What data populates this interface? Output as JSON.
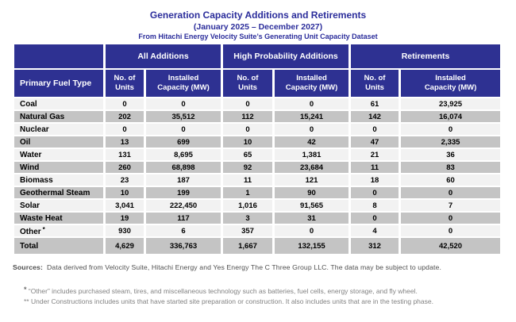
{
  "chart_data": {
    "type": "table",
    "title": "Generation Capacity Additions and Retirements",
    "subtitle": "(January 2025 – December 2027)",
    "dataset_line": "From Hitachi Energy Velocity Suite’s Generating Unit Capacity Dataset",
    "row_header": "Primary Fuel Type",
    "column_groups": [
      {
        "label": "All Additions"
      },
      {
        "label": "High Probability Additions"
      },
      {
        "label": "Retirements"
      }
    ],
    "subheaders": [
      "No. of\nUnits",
      "Installed\nCapacity (MW)",
      "No. of\nUnits",
      "Installed\nCapacity (MW)",
      "No. of\nUnits",
      "Installed\nCapacity (MW)"
    ],
    "rows": [
      {
        "fuel": "Coal",
        "values": [
          "0",
          "0",
          "0",
          "0",
          "61",
          "23,925"
        ]
      },
      {
        "fuel": "Natural Gas",
        "values": [
          "202",
          "35,512",
          "112",
          "15,241",
          "142",
          "16,074"
        ]
      },
      {
        "fuel": "Nuclear",
        "values": [
          "0",
          "0",
          "0",
          "0",
          "0",
          "0"
        ]
      },
      {
        "fuel": "Oil",
        "values": [
          "13",
          "699",
          "10",
          "42",
          "47",
          "2,335"
        ]
      },
      {
        "fuel": "Water",
        "values": [
          "131",
          "8,695",
          "65",
          "1,381",
          "21",
          "36"
        ]
      },
      {
        "fuel": "Wind",
        "values": [
          "260",
          "68,898",
          "92",
          "23,684",
          "11",
          "83"
        ]
      },
      {
        "fuel": "Biomass",
        "values": [
          "23",
          "187",
          "11",
          "121",
          "18",
          "60"
        ]
      },
      {
        "fuel": "Geothermal Steam",
        "values": [
          "10",
          "199",
          "1",
          "90",
          "0",
          "0"
        ]
      },
      {
        "fuel": "Solar",
        "values": [
          "3,041",
          "222,450",
          "1,016",
          "91,565",
          "8",
          "7"
        ]
      },
      {
        "fuel": "Waste Heat",
        "values": [
          "19",
          "117",
          "3",
          "31",
          "0",
          "0"
        ]
      },
      {
        "fuel": "Other",
        "sup": "*",
        "values": [
          "930",
          "6",
          "357",
          "0",
          "4",
          "0"
        ]
      },
      {
        "fuel": "Total",
        "total": true,
        "values": [
          "4,629",
          "336,763",
          "1,667",
          "132,155",
          "312",
          "42,520"
        ]
      }
    ]
  },
  "footnotes": {
    "sources_label": "Sources:",
    "sources_text": "Data derived from Velocity Suite, Hitachi Energy and Yes Energy The C Three Group LLC.  The data may be subject to update.",
    "note1_marker": "*",
    "note1_text": "“Other” includes purchased steam, tires, and miscellaneous technology such as batteries, fuel cells, energy storage, and fly wheel.",
    "note2_marker": "**",
    "note2_text": "Under Constructions includes units that have started site preparation or construction.  It also includes units that are in the testing phase."
  },
  "colors": {
    "header_bg": "#2e3192",
    "title_text": "#2b2d9b",
    "row_light": "#f2f2f2",
    "row_shaded": "#c4c4c4",
    "body_text": "#000000",
    "footnote_text": "#828282"
  }
}
